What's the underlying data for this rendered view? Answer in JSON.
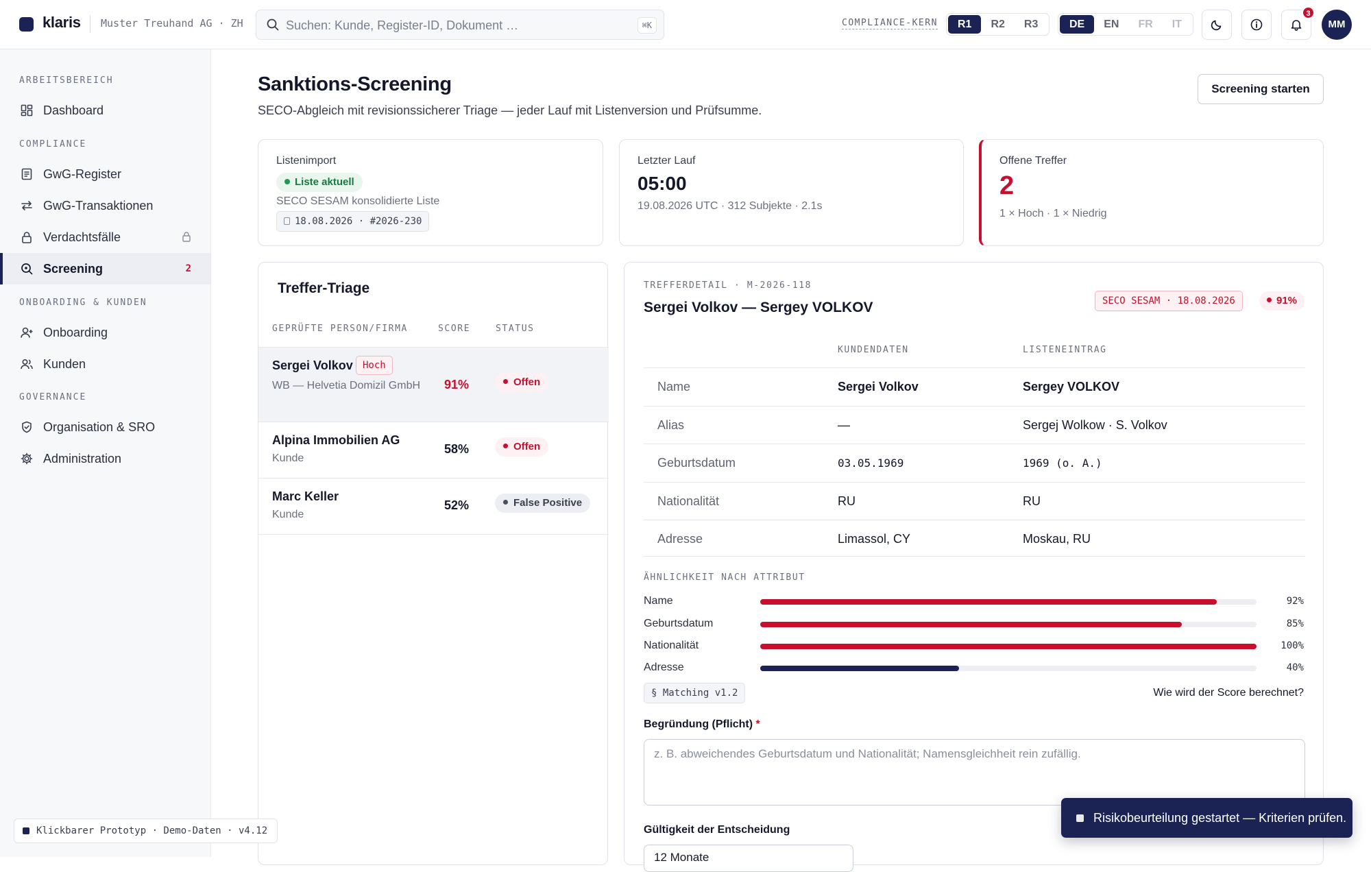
{
  "header": {
    "app_name": "klaris",
    "org": "Muster Treuhand AG · ZH",
    "search_placeholder": "Suchen: Kunde, Register-ID, Dokument …",
    "search_shortcut": "⌘K",
    "compliance_label": "COMPLIANCE-KERN",
    "roles": [
      "R1",
      "R2",
      "R3"
    ],
    "active_role": "R1",
    "languages": [
      "DE",
      "EN",
      "FR",
      "IT"
    ],
    "active_language": "DE",
    "notification_count": "3",
    "avatar_initials": "MM"
  },
  "sidebar": {
    "sections": {
      "workspace": "ARBEITSBEREICH",
      "compliance": "COMPLIANCE",
      "onboarding": "ONBOARDING & KUNDEN",
      "governance": "GOVERNANCE"
    },
    "items": {
      "dashboard": "Dashboard",
      "gwg_register": "GwG-Register",
      "gwg_transactions": "GwG-Transaktionen",
      "suspicious_cases": "Verdachtsfälle",
      "screening": "Screening",
      "screening_count": "2",
      "onboarding": "Onboarding",
      "customers": "Kunden",
      "organisation": "Organisation & SRO",
      "administration": "Administration"
    },
    "prototype_badge": "Klickbarer Prototyp · Demo-Daten · v4.12"
  },
  "page": {
    "title": "Sanktions-Screening",
    "subtitle": "SECO-Abgleich mit revisionssicherer Triage — jeder Lauf mit Listenversion und Prüfsumme.",
    "start_button": "Screening starten"
  },
  "kpis": {
    "import": {
      "label": "Listenimport",
      "status": "Liste aktuell",
      "source": "SECO SESAM konsolidierte Liste",
      "version": "18.08.2026 · #2026-230"
    },
    "last_run": {
      "label": "Letzter Lauf",
      "time": "05:00",
      "meta": "19.08.2026 UTC · 312 Subjekte · 2.1s"
    },
    "open_hits": {
      "label": "Offene Treffer",
      "value": "2",
      "meta": "1 × Hoch · 1 × Niedrig"
    }
  },
  "triage": {
    "title": "Treffer-Triage",
    "columns": [
      "GEPRÜFTE PERSON/FIRMA",
      "SCORE",
      "STATUS"
    ],
    "rows": [
      {
        "name": "Sergei Volkov",
        "tag": "Hoch",
        "sub": "WB — Helvetia Domizil GmbH",
        "score": "91%",
        "status": "Offen"
      },
      {
        "name": "Alpina Immobilien AG",
        "sub": "Kunde",
        "score": "58%",
        "status": "Offen"
      },
      {
        "name": "Marc Keller",
        "sub": "Kunde",
        "score": "52%",
        "status": "False Positive"
      }
    ]
  },
  "detail": {
    "eyebrow": "TREFFERDETAIL · M-2026-118",
    "title": "Sergei Volkov — Sergey VOLKOV",
    "list_tag": "SECO SESAM · 18.08.2026",
    "score": "91%",
    "col_customer": "KUNDENDATEN",
    "col_list": "LISTENEINTRAG",
    "rows": [
      {
        "label": "Name",
        "customer": "Sergei Volkov",
        "list": "Sergey VOLKOV"
      },
      {
        "label": "Alias",
        "customer": "—",
        "list": "Sergej Wolkow · S. Volkov"
      },
      {
        "label": "Geburtsdatum",
        "customer": "03.05.1969",
        "list": "1969 (o. A.)"
      },
      {
        "label": "Nationalität",
        "customer": "RU",
        "list": "RU"
      },
      {
        "label": "Adresse",
        "customer": "Limassol, CY",
        "list": "Moskau, RU"
      }
    ],
    "similarity_title": "ÄHNLICHKEIT NACH ATTRIBUT",
    "similarity": [
      {
        "label": "Name",
        "value": 92,
        "display": "92%",
        "color": "#c8102e"
      },
      {
        "label": "Geburtsdatum",
        "value": 85,
        "display": "85%",
        "color": "#c8102e"
      },
      {
        "label": "Nationalität",
        "value": 100,
        "display": "100%",
        "color": "#c8102e"
      },
      {
        "label": "Adresse",
        "value": 40,
        "display": "40%",
        "color": "#1b2254"
      }
    ],
    "matching_chip": "§ Matching v1.2",
    "score_link": "Wie wird der Score berechnet?",
    "reason_label": "Begründung (Pflicht)",
    "reason_required": "*",
    "reason_placeholder": "z. B. abweichendes Geburtsdatum und Nationalität; Namensgleichheit rein zufällig.",
    "validity_label": "Gültigkeit der Entscheidung",
    "validity_value": "12 Monate"
  },
  "toast": {
    "message": "Risikobeurteilung gestartet — Kriterien prüfen."
  },
  "colors": {
    "brand": "#1b2254",
    "alert": "#c8102e",
    "ok": "#1f9a51"
  }
}
